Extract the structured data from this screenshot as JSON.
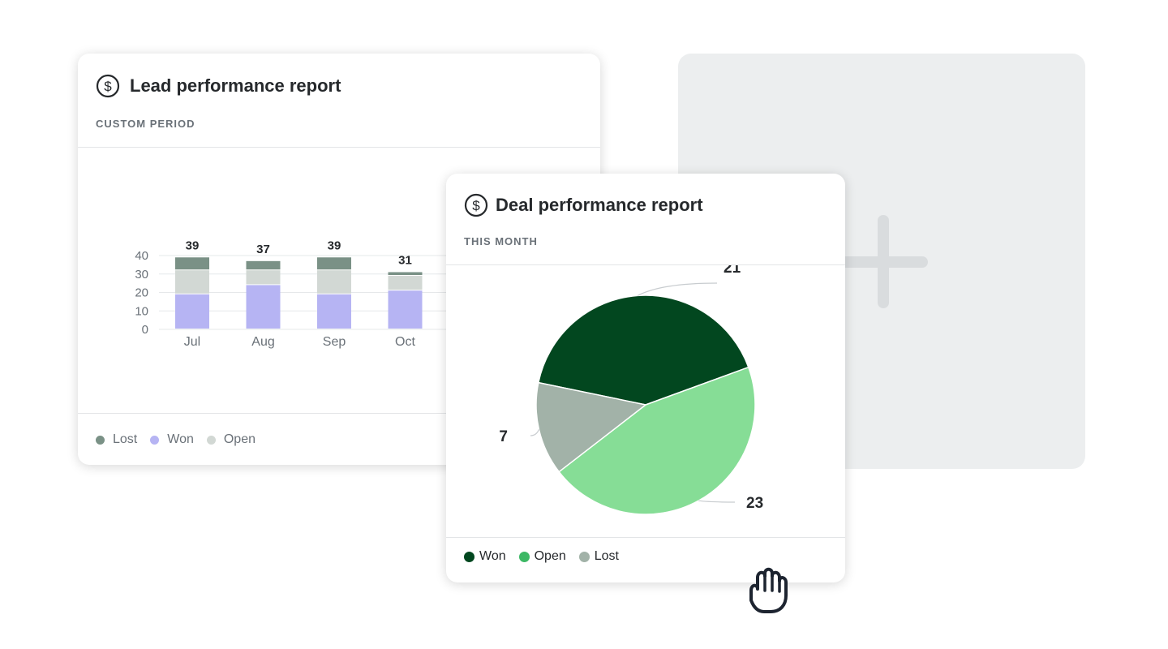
{
  "lead_report": {
    "title": "Lead performance report",
    "period": "CUSTOM PERIOD",
    "icon": "dollar-icon",
    "legend": [
      {
        "label": "Lost",
        "color": "#7a9186"
      },
      {
        "label": "Won",
        "color": "#b6b4f3"
      },
      {
        "label": "Open",
        "color": "#d2d8d4"
      }
    ]
  },
  "deal_report": {
    "title": "Deal performance report",
    "period": "THIS MONTH",
    "icon": "dollar-icon",
    "legend": [
      {
        "label": "Won",
        "color": "#02471f"
      },
      {
        "label": "Open",
        "color": "#3db865"
      },
      {
        "label": "Lost",
        "color": "#a2b2a8"
      }
    ]
  },
  "chart_data": [
    {
      "type": "bar",
      "stacked": true,
      "categories": [
        "Jul",
        "Aug",
        "Sep",
        "Oct"
      ],
      "series": [
        {
          "name": "Won",
          "values": [
            19,
            24,
            19,
            21
          ],
          "color": "#b6b4f3"
        },
        {
          "name": "Open",
          "values": [
            13,
            8,
            13,
            8
          ],
          "color": "#d2d8d4"
        },
        {
          "name": "Lost",
          "values": [
            7,
            5,
            7,
            2
          ],
          "color": "#7a9186"
        }
      ],
      "totals": [
        39,
        37,
        39,
        31
      ],
      "yticks": [
        0,
        10,
        20,
        30,
        40
      ],
      "ylim": [
        0,
        40
      ],
      "grid": true,
      "legend": "bottom-left"
    },
    {
      "type": "pie",
      "slices": [
        {
          "name": "Won",
          "value": 21,
          "color": "#02471f"
        },
        {
          "name": "Open",
          "value": 23,
          "color": "#86dd96"
        },
        {
          "name": "Lost",
          "value": 7,
          "color": "#a2b2a8"
        }
      ],
      "legend": "bottom-left"
    }
  ]
}
